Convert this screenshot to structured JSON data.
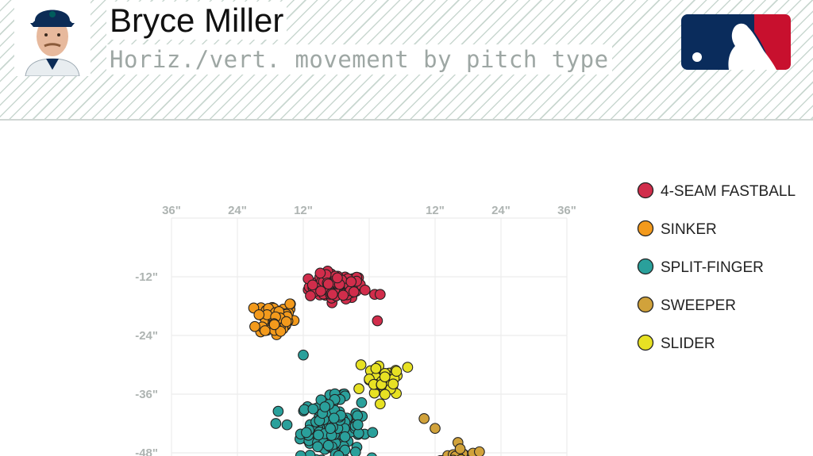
{
  "header": {
    "player_name": "Bryce Miller",
    "subtitle": "Horiz./vert. movement by pitch type",
    "logo_colors": {
      "blue": "#0a2c5c",
      "red": "#c8102e"
    }
  },
  "chart_data": {
    "type": "scatter",
    "x_ticks": [
      "36\"",
      "24\"",
      "12\"",
      "12\"",
      "24\"",
      "36\""
    ],
    "y_ticks": [
      "-12\"",
      "-24\"",
      "-36\"",
      "-48\""
    ],
    "xlim": [
      -36,
      36
    ],
    "ylim": [
      -50,
      0
    ],
    "grid": true,
    "legend_position": "right",
    "series": [
      {
        "name": "4-SEAM FASTBALL",
        "color": "#d12d4b",
        "center": [
          -6,
          -14
        ],
        "spread": [
          4.5,
          2.3
        ],
        "count": 110,
        "outliers": [
          [
            1,
            -15.6
          ],
          [
            2,
            -15.6
          ],
          [
            1.5,
            -21
          ]
        ]
      },
      {
        "name": "SINKER",
        "color": "#f39a1c",
        "center": [
          -17,
          -20.5
        ],
        "spread": [
          3.2,
          3.6
        ],
        "count": 60,
        "outliers": []
      },
      {
        "name": "SPLIT-FINGER",
        "color": "#2aa09b",
        "center": [
          -7,
          -43
        ],
        "spread": [
          5,
          5.5
        ],
        "count": 160,
        "outliers": [
          [
            -17,
            -42
          ],
          [
            -12,
            -28
          ]
        ]
      },
      {
        "name": "SWEEPER",
        "color": "#d1a23b",
        "center": [
          17,
          -49.5
        ],
        "spread": [
          3.5,
          2
        ],
        "count": 55,
        "outliers": [
          [
            10,
            -41
          ],
          [
            12,
            -43
          ]
        ]
      },
      {
        "name": "SLIDER",
        "color": "#e7e123",
        "center": [
          2.5,
          -33.5
        ],
        "spread": [
          3,
          2.8
        ],
        "count": 45,
        "outliers": [
          [
            7,
            -30.5
          ],
          [
            -1.5,
            -30
          ],
          [
            2,
            -38
          ]
        ]
      }
    ]
  }
}
